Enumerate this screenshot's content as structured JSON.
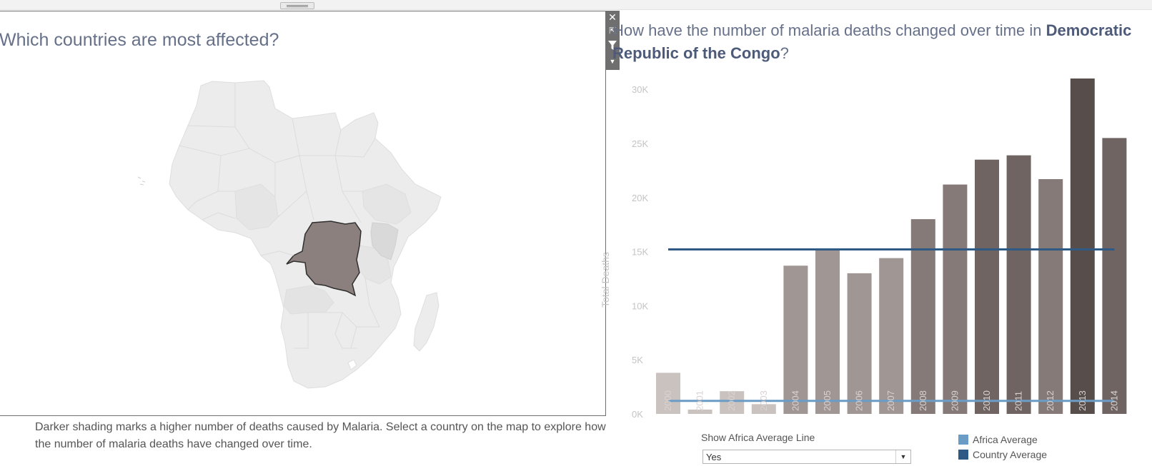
{
  "left_panel": {
    "title": "Which countries are most affected?",
    "description": "Darker shading marks a higher number of deaths caused by Malaria. Select a country on the map to explore how the number of malaria deaths have changed over time.",
    "selected_country": "Democratic Republic of the Congo",
    "controls": {
      "close_icon": "close-icon",
      "popout_icon": "popout-icon",
      "filter_icon": "filter-icon",
      "menu_icon": "chevron-down-icon"
    }
  },
  "right_panel": {
    "title_prefix": "How have the number of malaria deaths changed over time in",
    "title_country": "Democratic Republic of the Congo",
    "title_suffix": "?",
    "filter": {
      "label": "Show Africa Average Line",
      "value": "Yes"
    },
    "legend": [
      {
        "label": "Africa Average",
        "color": "#6b9cc6"
      },
      {
        "label": "Country Average",
        "color": "#2f5a86"
      }
    ]
  },
  "chart_data": {
    "type": "bar",
    "ylabel": "Total Deaths",
    "xlabel": "",
    "ylim": [
      0,
      31000
    ],
    "y_ticks": [
      {
        "value": 0,
        "label": "0K"
      },
      {
        "value": 5000,
        "label": "5K"
      },
      {
        "value": 10000,
        "label": "10K"
      },
      {
        "value": 15000,
        "label": "15K"
      },
      {
        "value": 20000,
        "label": "20K"
      },
      {
        "value": 25000,
        "label": "25K"
      },
      {
        "value": 30000,
        "label": "30K"
      }
    ],
    "categories": [
      "2000",
      "2001",
      "2002",
      "2003",
      "2004",
      "2005",
      "2006",
      "2007",
      "2008",
      "2009",
      "2010",
      "2011",
      "2012",
      "2013",
      "2014"
    ],
    "values": [
      3800,
      400,
      2100,
      900,
      13700,
      15300,
      13000,
      14400,
      18000,
      21200,
      23500,
      23900,
      21700,
      31000,
      25500
    ],
    "bar_colors": [
      "#cac2bf",
      "#cac2bf",
      "#cac2bf",
      "#cac2bf",
      "#a09693",
      "#a09693",
      "#a09693",
      "#a09693",
      "#857a77",
      "#857a77",
      "#6f6461",
      "#6f6461",
      "#857a77",
      "#574d4b",
      "#6f6461"
    ],
    "reference_lines": [
      {
        "name": "Country Average",
        "value": 15200,
        "color": "#2f5a86"
      },
      {
        "name": "Africa Average",
        "value": 1200,
        "color": "#6b9cc6"
      }
    ],
    "grid": false
  }
}
